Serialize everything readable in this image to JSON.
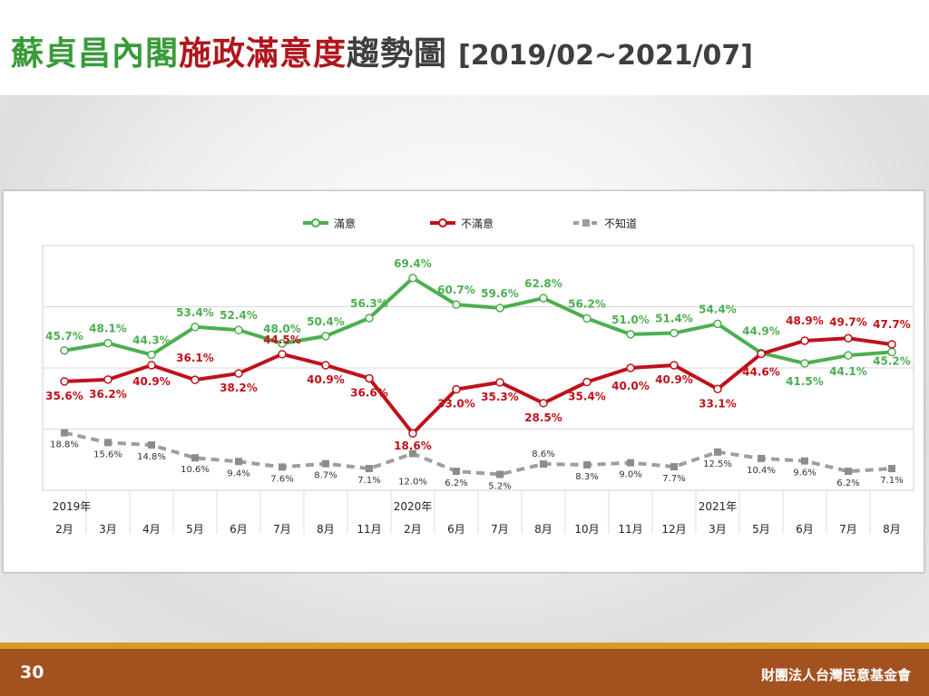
{
  "header": {
    "title_part1": "蘇貞昌內閣",
    "title_part2": "施政滿意度",
    "title_part3": "趨勢圖",
    "title_range": "[2019/02~2021/07]"
  },
  "footer": {
    "page_number": "30",
    "organization": "財團法人台灣民意基金會"
  },
  "colors": {
    "satisfied": "#4caf50",
    "dissatisfied": "#c0111a",
    "unknown": "#9e9e9e",
    "title_green": "#3a9a3a",
    "title_red": "#b0161c",
    "footer": "#a3521f"
  },
  "chart_data": {
    "type": "line",
    "title": "",
    "xlabel": "",
    "ylabel": "",
    "ylim": [
      0,
      80
    ],
    "grid": true,
    "legend_position": "top",
    "years": [
      {
        "label": "2019年",
        "index": 0
      },
      {
        "label": "2020年",
        "index": 8
      },
      {
        "label": "2021年",
        "index": 15
      }
    ],
    "categories": [
      "2月",
      "3月",
      "4月",
      "5月",
      "6月",
      "7月",
      "8月",
      "11月",
      "2月",
      "6月",
      "7月",
      "8月",
      "10月",
      "11月",
      "12月",
      "3月",
      "5月",
      "6月",
      "7月",
      "8月"
    ],
    "series": [
      {
        "name": "滿意",
        "values": [
          45.7,
          48.1,
          44.3,
          53.4,
          52.4,
          48.0,
          50.4,
          56.3,
          69.4,
          60.7,
          59.6,
          62.8,
          56.2,
          51.0,
          51.4,
          54.4,
          44.9,
          41.5,
          44.1,
          45.2
        ],
        "labels": [
          "45.7%",
          "48.1%",
          "44.3%",
          "53.4%",
          "52.4%",
          "48.0%",
          "50.4%",
          "56.3%",
          "69.4%",
          "60.7%",
          "59.6%",
          "62.8%",
          "56.2%",
          "51.0%",
          "51.4%",
          "54.4%",
          "44.9%",
          "41.5%",
          "44.1%",
          "45.2%"
        ]
      },
      {
        "name": "不滿意",
        "values": [
          35.6,
          36.2,
          40.9,
          36.1,
          38.2,
          44.5,
          40.9,
          36.6,
          18.6,
          33.0,
          35.3,
          28.5,
          35.4,
          40.0,
          40.9,
          33.1,
          44.6,
          48.9,
          49.7,
          47.7
        ],
        "labels": [
          "35.6%",
          "36.2%",
          "40.9%",
          "36.1%",
          "38.2%",
          "44.5%",
          "40.9%",
          "36.6%",
          "18.6%",
          "33.0%",
          "35.3%",
          "28.5%",
          "35.4%",
          "40.0%",
          "40.9%",
          "33.1%",
          "44.6%",
          "48.9%",
          "49.7%",
          "47.7%"
        ]
      },
      {
        "name": "不知道",
        "values": [
          18.8,
          15.6,
          14.8,
          10.6,
          9.4,
          7.6,
          8.7,
          7.1,
          12.0,
          6.2,
          5.2,
          8.6,
          8.3,
          9.0,
          7.7,
          12.5,
          10.4,
          9.6,
          6.2,
          7.1
        ],
        "labels": [
          "18.8%",
          "15.6%",
          "14.8%",
          "10.6%",
          "9.4%",
          "7.6%",
          "8.7%",
          "7.1%",
          "12.0%",
          "6.2%",
          "5.2%",
          "8.6%",
          "8.3%",
          "9.0%",
          "7.7%",
          "12.5%",
          "10.4%",
          "9.6%",
          "6.2%",
          "7.1%"
        ]
      }
    ]
  }
}
